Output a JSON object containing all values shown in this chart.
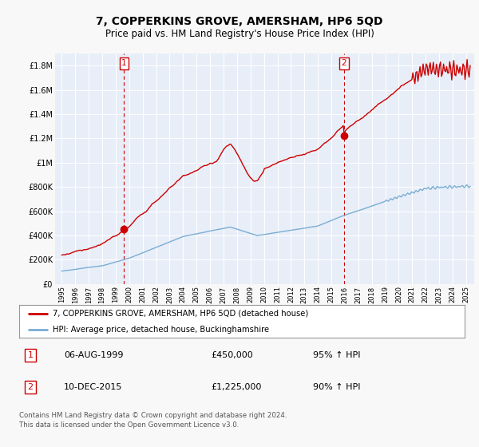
{
  "title": "7, COPPERKINS GROVE, AMERSHAM, HP6 5QD",
  "subtitle": "Price paid vs. HM Land Registry's House Price Index (HPI)",
  "title_fontsize": 10,
  "subtitle_fontsize": 8.5,
  "fig_bg_color": "#f8f8f8",
  "plot_bg_color": "#e8eef8",
  "grid_color": "#ffffff",
  "ylim": [
    0,
    1900000
  ],
  "yticks": [
    0,
    200000,
    400000,
    600000,
    800000,
    1000000,
    1200000,
    1400000,
    1600000,
    1800000
  ],
  "ytick_labels": [
    "£0",
    "£200K",
    "£400K",
    "£600K",
    "£800K",
    "£1M",
    "£1.2M",
    "£1.4M",
    "£1.6M",
    "£1.8M"
  ],
  "t1_year": 1999.622,
  "t1_price": 450000,
  "t2_year": 2015.945,
  "t2_price": 1225000,
  "red_line_color": "#cc0000",
  "blue_line_color": "#7aadd4",
  "legend_label_red": "7, COPPERKINS GROVE, AMERSHAM, HP6 5QD (detached house)",
  "legend_label_blue": "HPI: Average price, detached house, Buckinghamshire",
  "footer": "Contains HM Land Registry data © Crown copyright and database right 2024.\nThis data is licensed under the Open Government Licence v3.0."
}
